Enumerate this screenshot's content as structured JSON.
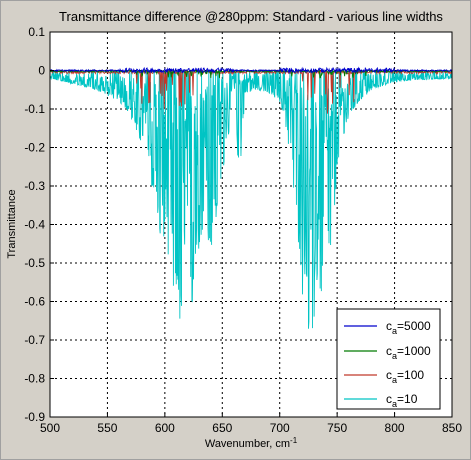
{
  "chart_data": {
    "type": "line",
    "title": "Transmittance difference @280ppm: Standard - various line widths",
    "xlabel": "Wavenumber, cm",
    "xlabel_sup": "-1",
    "ylabel": "Transmittance",
    "xlim": [
      500,
      850
    ],
    "ylim": [
      -0.9,
      0.1
    ],
    "xticks": [
      500,
      550,
      600,
      650,
      700,
      750,
      800,
      850
    ],
    "yticks": [
      0.1,
      0,
      -0.1,
      -0.2,
      -0.3,
      -0.4,
      -0.5,
      -0.6,
      -0.7,
      -0.8,
      -0.9
    ],
    "grid": true,
    "legend_position": "bottom-right",
    "series": [
      {
        "name": "c_a=5000",
        "base": "c",
        "sub": "a",
        "value": "=5000",
        "color": "#0000cc",
        "description_points": [
          [
            500,
            -0.002
          ],
          [
            600,
            -0.005
          ],
          [
            650,
            0.003
          ],
          [
            700,
            -0.004
          ],
          [
            760,
            0.004
          ],
          [
            850,
            -0.002
          ]
        ]
      },
      {
        "name": "c_a=1000",
        "base": "c",
        "sub": "a",
        "value": "=1000",
        "color": "#007a00",
        "description_points": [
          [
            500,
            -0.003
          ],
          [
            600,
            -0.02
          ],
          [
            650,
            -0.004
          ],
          [
            700,
            -0.006
          ],
          [
            760,
            -0.015
          ],
          [
            850,
            -0.003
          ]
        ]
      },
      {
        "name": "c_a=100",
        "base": "c",
        "sub": "a",
        "value": "=100",
        "color": "#c0392b",
        "description_points": [
          [
            500,
            -0.01
          ],
          [
            590,
            -0.07
          ],
          [
            630,
            -0.06
          ],
          [
            700,
            -0.01
          ],
          [
            740,
            -0.08
          ],
          [
            850,
            -0.01
          ]
        ]
      },
      {
        "name": "c_a=10",
        "base": "c",
        "sub": "a",
        "value": "=10",
        "color": "#00c4c4",
        "envelope_x": [
          500,
          520,
          540,
          560,
          570,
          580,
          590,
          595,
          600,
          605,
          610,
          615,
          620,
          625,
          630,
          635,
          640,
          645,
          650,
          655,
          660,
          665,
          670,
          680,
          690,
          700,
          705,
          710,
          715,
          720,
          725,
          730,
          735,
          740,
          745,
          750,
          755,
          760,
          770,
          780,
          790,
          800,
          820,
          850
        ],
        "envelope_min": [
          -0.02,
          -0.035,
          -0.05,
          -0.08,
          -0.12,
          -0.2,
          -0.32,
          -0.42,
          -0.52,
          -0.56,
          -0.6,
          -0.85,
          -0.75,
          -0.6,
          -0.46,
          -0.5,
          -0.48,
          -0.42,
          -0.3,
          -0.18,
          -0.1,
          -0.28,
          -0.06,
          -0.05,
          -0.06,
          -0.08,
          -0.14,
          -0.25,
          -0.45,
          -0.6,
          -0.72,
          -0.65,
          -0.6,
          -0.58,
          -0.45,
          -0.3,
          -0.18,
          -0.12,
          -0.08,
          -0.05,
          -0.04,
          -0.03,
          -0.025,
          -0.02
        ],
        "baseline_min": [
          -0.02,
          -0.03,
          -0.04,
          -0.06,
          -0.08,
          -0.11,
          -0.15,
          -0.18,
          -0.22,
          -0.25,
          -0.28,
          -0.3,
          -0.3,
          -0.28,
          -0.25,
          -0.22,
          -0.19,
          -0.14,
          -0.1,
          -0.07,
          -0.05,
          -0.05,
          -0.04,
          -0.035,
          -0.04,
          -0.06,
          -0.08,
          -0.11,
          -0.16,
          -0.22,
          -0.27,
          -0.29,
          -0.28,
          -0.24,
          -0.2,
          -0.15,
          -0.11,
          -0.08,
          -0.05,
          -0.04,
          -0.03,
          -0.025,
          -0.02,
          -0.02
        ]
      }
    ]
  }
}
